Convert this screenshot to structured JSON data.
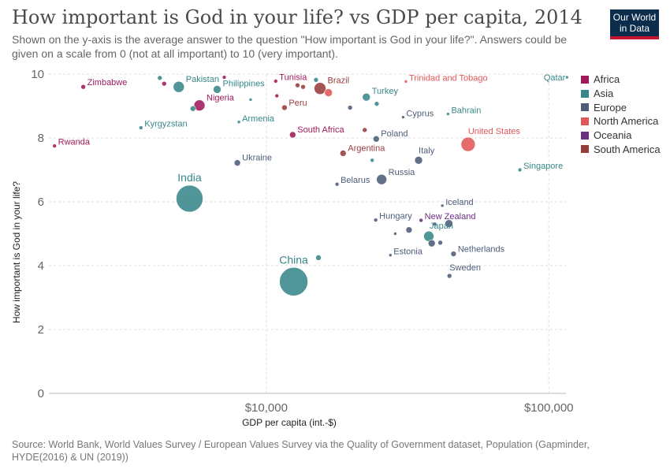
{
  "title": "How important is God in your life? vs GDP per capita, 2014",
  "subtitle": "Shown on the y-axis is the average answer to the question \"How important is God in your life?\". Answers could be given on a scale from 0 (not at all important) to 10 (very important).",
  "logo": {
    "line1": "Our World",
    "line2": "in Data"
  },
  "source": "Source: World Bank, World Values Survey / European Values Survey via the Quality of Government dataset, Population (Gapminder, HYDE(2016) & UN (2019))",
  "chart_data": {
    "type": "scatter",
    "xlabel": "GDP per capita (int.-$)",
    "ylabel": "How important is God in your life?",
    "x_scale": "log",
    "xlim": [
      1700,
      115000
    ],
    "ylim": [
      0,
      10
    ],
    "x_ticks": [
      {
        "value": 10000,
        "label": "$10,000"
      },
      {
        "value": 100000,
        "label": "$100,000"
      }
    ],
    "y_ticks": [
      {
        "value": 0,
        "label": "0"
      },
      {
        "value": 2,
        "label": "2"
      },
      {
        "value": 4,
        "label": "4"
      },
      {
        "value": 6,
        "label": "6"
      },
      {
        "value": 8,
        "label": "8"
      },
      {
        "value": 10,
        "label": "10"
      }
    ],
    "grid": true,
    "legend_position": "right",
    "regions": [
      {
        "name": "Africa",
        "color": "#a2195b"
      },
      {
        "name": "Asia",
        "color": "#38878a"
      },
      {
        "name": "Europe",
        "color": "#4c5c78"
      },
      {
        "name": "North America",
        "color": "#e15759"
      },
      {
        "name": "Oceania",
        "color": "#6c2d83"
      },
      {
        "name": "South America",
        "color": "#963d3c"
      }
    ],
    "points": [
      {
        "x": 1780,
        "y": 7.75,
        "region": "Africa",
        "size": 2.5,
        "label": "Rwanda",
        "label_pos": "right"
      },
      {
        "x": 2250,
        "y": 9.6,
        "region": "Africa",
        "size": 3,
        "label": "Zimbabwe",
        "label_pos": "right"
      },
      {
        "x": 3600,
        "y": 8.32,
        "region": "Asia",
        "size": 2.5,
        "label": "Kyrgyzstan",
        "label_pos": "right"
      },
      {
        "x": 4200,
        "y": 9.88,
        "region": "Asia",
        "size": 3,
        "label": "",
        "label_pos": ""
      },
      {
        "x": 4350,
        "y": 9.7,
        "region": "Africa",
        "size": 3,
        "label": "",
        "label_pos": ""
      },
      {
        "x": 4900,
        "y": 9.6,
        "region": "Asia",
        "size": 7,
        "label": "Pakistan",
        "label_pos": "right"
      },
      {
        "x": 5350,
        "y": 6.1,
        "region": "Asia",
        "size": 17,
        "label": "India",
        "label_pos": "above"
      },
      {
        "x": 5500,
        "y": 8.92,
        "region": "Asia",
        "size": 3.5,
        "label": "",
        "label_pos": ""
      },
      {
        "x": 5800,
        "y": 9.02,
        "region": "Africa",
        "size": 7,
        "label": "Nigeria",
        "label_pos": "right"
      },
      {
        "x": 6700,
        "y": 9.52,
        "region": "Asia",
        "size": 5,
        "label": "Philippines",
        "label_pos": "right"
      },
      {
        "x": 7100,
        "y": 9.9,
        "region": "Africa",
        "size": 2.5,
        "label": "",
        "label_pos": ""
      },
      {
        "x": 7900,
        "y": 7.22,
        "region": "Europe",
        "size": 4,
        "label": "Ukraine",
        "label_pos": "right"
      },
      {
        "x": 8000,
        "y": 8.5,
        "region": "Asia",
        "size": 2,
        "label": "Armenia",
        "label_pos": "right"
      },
      {
        "x": 8800,
        "y": 9.2,
        "region": "Asia",
        "size": 2,
        "label": "",
        "label_pos": ""
      },
      {
        "x": 10800,
        "y": 9.78,
        "region": "Africa",
        "size": 2.5,
        "label": "Tunisia",
        "label_pos": "right"
      },
      {
        "x": 10900,
        "y": 9.32,
        "region": "Africa",
        "size": 2.5,
        "label": "",
        "label_pos": ""
      },
      {
        "x": 11600,
        "y": 8.95,
        "region": "South America",
        "size": 3.5,
        "label": "Peru",
        "label_pos": "right"
      },
      {
        "x": 12500,
        "y": 3.5,
        "region": "Asia",
        "size": 18,
        "label": "China",
        "label_pos": "above"
      },
      {
        "x": 12400,
        "y": 8.1,
        "region": "Africa",
        "size": 4,
        "label": "South Africa",
        "label_pos": "right"
      },
      {
        "x": 12900,
        "y": 9.65,
        "region": "South America",
        "size": 3,
        "label": "",
        "label_pos": ""
      },
      {
        "x": 13500,
        "y": 9.6,
        "region": "South America",
        "size": 3,
        "label": "",
        "label_pos": ""
      },
      {
        "x": 15000,
        "y": 9.82,
        "region": "Asia",
        "size": 3,
        "label": "",
        "label_pos": ""
      },
      {
        "x": 15300,
        "y": 4.25,
        "region": "Asia",
        "size": 3.5,
        "label": "",
        "label_pos": ""
      },
      {
        "x": 15500,
        "y": 9.55,
        "region": "South America",
        "size": 7.5,
        "label": "Brazil",
        "label_pos": "right"
      },
      {
        "x": 16600,
        "y": 9.42,
        "region": "North America",
        "size": 5,
        "label": "",
        "label_pos": ""
      },
      {
        "x": 17800,
        "y": 6.55,
        "region": "Europe",
        "size": 2.5,
        "label": "Belarus",
        "label_pos": "right"
      },
      {
        "x": 18700,
        "y": 7.52,
        "region": "South America",
        "size": 4,
        "label": "Argentina",
        "label_pos": "right"
      },
      {
        "x": 19800,
        "y": 8.95,
        "region": "Europe",
        "size": 3,
        "label": "",
        "label_pos": ""
      },
      {
        "x": 22300,
        "y": 8.25,
        "region": "South America",
        "size": 3,
        "label": "",
        "label_pos": ""
      },
      {
        "x": 22600,
        "y": 9.28,
        "region": "Asia",
        "size": 5,
        "label": "Turkey",
        "label_pos": "right"
      },
      {
        "x": 23700,
        "y": 7.3,
        "region": "Asia",
        "size": 2.5,
        "label": "",
        "label_pos": ""
      },
      {
        "x": 24600,
        "y": 9.07,
        "region": "Asia",
        "size": 3,
        "label": "",
        "label_pos": ""
      },
      {
        "x": 24500,
        "y": 7.97,
        "region": "Europe",
        "size": 4,
        "label": "Poland",
        "label_pos": "right"
      },
      {
        "x": 24400,
        "y": 5.43,
        "region": "Europe",
        "size": 2.5,
        "label": "Hungary",
        "label_pos": "right"
      },
      {
        "x": 25600,
        "y": 6.7,
        "region": "Europe",
        "size": 6.5,
        "label": "Russia",
        "label_pos": "right"
      },
      {
        "x": 27500,
        "y": 4.33,
        "region": "Europe",
        "size": 2,
        "label": "Estonia",
        "label_pos": "right"
      },
      {
        "x": 28600,
        "y": 5.0,
        "region": "Europe",
        "size": 2,
        "label": "",
        "label_pos": ""
      },
      {
        "x": 30500,
        "y": 8.65,
        "region": "Europe",
        "size": 2,
        "label": "Cyprus",
        "label_pos": "right"
      },
      {
        "x": 31200,
        "y": 9.77,
        "region": "North America",
        "size": 2,
        "label": "Trinidad and Tobago",
        "label_pos": "right"
      },
      {
        "x": 32000,
        "y": 5.12,
        "region": "Europe",
        "size": 4,
        "label": "",
        "label_pos": ""
      },
      {
        "x": 34600,
        "y": 7.3,
        "region": "Europe",
        "size": 5,
        "label": "Italy",
        "label_pos": "above-right"
      },
      {
        "x": 35300,
        "y": 5.42,
        "region": "Oceania",
        "size": 2.5,
        "label": "New Zealand",
        "label_pos": "right"
      },
      {
        "x": 37600,
        "y": 4.92,
        "region": "Asia",
        "size": 6.5,
        "label": "Japan",
        "label_pos": "above-center"
      },
      {
        "x": 38500,
        "y": 4.7,
        "region": "Europe",
        "size": 4.5,
        "label": "",
        "label_pos": ""
      },
      {
        "x": 39500,
        "y": 5.3,
        "region": "Europe",
        "size": 2.5,
        "label": "",
        "label_pos": ""
      },
      {
        "x": 41300,
        "y": 4.72,
        "region": "Europe",
        "size": 3,
        "label": "",
        "label_pos": ""
      },
      {
        "x": 42000,
        "y": 5.88,
        "region": "Europe",
        "size": 2,
        "label": "Iceland",
        "label_pos": "right"
      },
      {
        "x": 44300,
        "y": 5.32,
        "region": "Europe",
        "size": 5,
        "label": "",
        "label_pos": ""
      },
      {
        "x": 44000,
        "y": 8.75,
        "region": "Asia",
        "size": 2,
        "label": "Bahrain",
        "label_pos": "right"
      },
      {
        "x": 44500,
        "y": 3.68,
        "region": "Europe",
        "size": 3,
        "label": "Sweden",
        "label_pos": "above-right"
      },
      {
        "x": 46000,
        "y": 4.37,
        "region": "Europe",
        "size": 3.5,
        "label": "Netherlands",
        "label_pos": "right"
      },
      {
        "x": 51800,
        "y": 7.8,
        "region": "North America",
        "size": 9,
        "label": "United States",
        "label_pos": "above-right"
      },
      {
        "x": 79000,
        "y": 7.0,
        "region": "Asia",
        "size": 2.5,
        "label": "Singapore",
        "label_pos": "right"
      },
      {
        "x": 116000,
        "y": 9.9,
        "region": "Asia",
        "size": 2,
        "label": "Qatar",
        "label_pos": "left"
      }
    ]
  }
}
